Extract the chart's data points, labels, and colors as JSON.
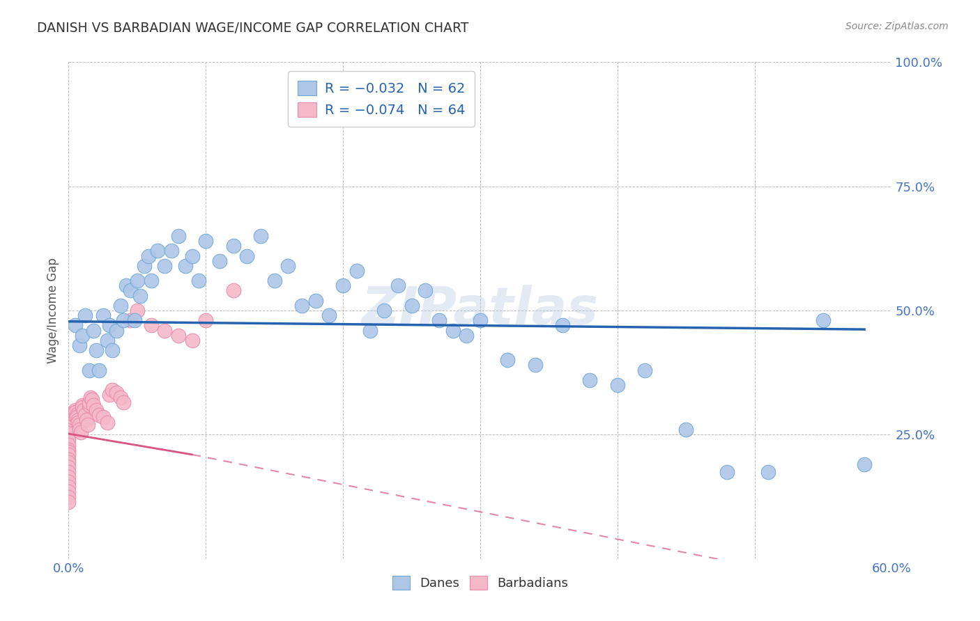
{
  "title": "DANISH VS BARBADIAN WAGE/INCOME GAP CORRELATION CHART",
  "source": "Source: ZipAtlas.com",
  "ylabel": "Wage/Income Gap",
  "watermark": "ZIPatlas",
  "xlim": [
    0.0,
    0.6
  ],
  "ylim": [
    0.0,
    1.0
  ],
  "xtick_vals": [
    0.0,
    0.1,
    0.2,
    0.3,
    0.4,
    0.5,
    0.6
  ],
  "xtick_labels": [
    "0.0%",
    "",
    "",
    "",
    "",
    "",
    "60.0%"
  ],
  "ytick_vals": [
    0.0,
    0.25,
    0.5,
    0.75,
    1.0
  ],
  "ytick_labels": [
    "",
    "25.0%",
    "50.0%",
    "75.0%",
    "100.0%"
  ],
  "danes_x": [
    0.005,
    0.008,
    0.01,
    0.012,
    0.015,
    0.018,
    0.02,
    0.022,
    0.025,
    0.028,
    0.03,
    0.032,
    0.035,
    0.038,
    0.04,
    0.042,
    0.045,
    0.048,
    0.05,
    0.052,
    0.055,
    0.058,
    0.06,
    0.065,
    0.07,
    0.075,
    0.08,
    0.085,
    0.09,
    0.095,
    0.1,
    0.11,
    0.12,
    0.13,
    0.14,
    0.15,
    0.16,
    0.17,
    0.18,
    0.19,
    0.2,
    0.21,
    0.22,
    0.23,
    0.24,
    0.25,
    0.26,
    0.27,
    0.28,
    0.29,
    0.3,
    0.32,
    0.34,
    0.36,
    0.38,
    0.4,
    0.42,
    0.45,
    0.48,
    0.51,
    0.55,
    0.58
  ],
  "danes_y": [
    0.47,
    0.43,
    0.45,
    0.49,
    0.38,
    0.46,
    0.42,
    0.38,
    0.49,
    0.44,
    0.47,
    0.42,
    0.46,
    0.51,
    0.48,
    0.55,
    0.54,
    0.48,
    0.56,
    0.53,
    0.59,
    0.61,
    0.56,
    0.62,
    0.59,
    0.62,
    0.65,
    0.59,
    0.61,
    0.56,
    0.64,
    0.6,
    0.63,
    0.61,
    0.65,
    0.56,
    0.59,
    0.51,
    0.52,
    0.49,
    0.55,
    0.58,
    0.46,
    0.5,
    0.55,
    0.51,
    0.54,
    0.48,
    0.46,
    0.45,
    0.48,
    0.4,
    0.39,
    0.47,
    0.36,
    0.35,
    0.38,
    0.26,
    0.175,
    0.175,
    0.48,
    0.19
  ],
  "barbadians_x": [
    0.0,
    0.0,
    0.0,
    0.0,
    0.0,
    0.0,
    0.0,
    0.0,
    0.0,
    0.0,
    0.0,
    0.0,
    0.0,
    0.0,
    0.0,
    0.0,
    0.0,
    0.0,
    0.0,
    0.0,
    0.001,
    0.002,
    0.002,
    0.003,
    0.003,
    0.004,
    0.004,
    0.005,
    0.005,
    0.006,
    0.006,
    0.007,
    0.007,
    0.008,
    0.008,
    0.009,
    0.01,
    0.01,
    0.011,
    0.012,
    0.013,
    0.014,
    0.015,
    0.015,
    0.016,
    0.017,
    0.018,
    0.02,
    0.022,
    0.025,
    0.028,
    0.03,
    0.032,
    0.035,
    0.038,
    0.04,
    0.045,
    0.05,
    0.06,
    0.07,
    0.08,
    0.09,
    0.1,
    0.12
  ],
  "barbadians_y": [
    0.265,
    0.26,
    0.255,
    0.25,
    0.245,
    0.24,
    0.23,
    0.22,
    0.215,
    0.21,
    0.2,
    0.195,
    0.185,
    0.175,
    0.165,
    0.155,
    0.145,
    0.135,
    0.125,
    0.115,
    0.275,
    0.27,
    0.265,
    0.28,
    0.285,
    0.29,
    0.295,
    0.3,
    0.295,
    0.29,
    0.285,
    0.28,
    0.275,
    0.27,
    0.26,
    0.255,
    0.31,
    0.305,
    0.3,
    0.29,
    0.28,
    0.27,
    0.31,
    0.315,
    0.325,
    0.32,
    0.31,
    0.3,
    0.29,
    0.285,
    0.275,
    0.33,
    0.34,
    0.335,
    0.325,
    0.315,
    0.48,
    0.5,
    0.47,
    0.46,
    0.45,
    0.44,
    0.48,
    0.54
  ],
  "danes_line_color": "#2563b0",
  "barbadians_line_color": "#d9547e",
  "danes_dot_color": "#aec6e8",
  "barbadians_dot_color": "#f4b8c8",
  "danes_dot_edge": "#6fa8d8",
  "barbadians_dot_edge": "#e88aab",
  "grid_color": "#bbbbbb",
  "background_color": "#ffffff",
  "title_color": "#333333",
  "axis_label_color": "#555555",
  "tick_label_color": "#4472c4",
  "source_color": "#888888"
}
